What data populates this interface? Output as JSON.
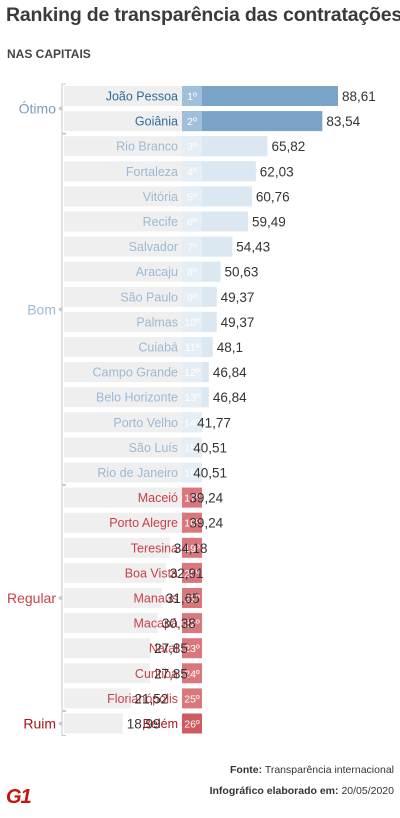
{
  "header": {
    "title": "Ranking de transparência das contratações",
    "subtitle": "NAS CAPITAIS"
  },
  "footer": {
    "source_label": "Fonte:",
    "source_value": "Transparência internacional",
    "credit_label": "Infográfico elaborado em:",
    "credit_value": "20/05/2020",
    "logo": "G1"
  },
  "chart_data": {
    "type": "bar",
    "orientation": "horizontal",
    "title": "Ranking de transparência das contratações",
    "subtitle": "NAS CAPITAIS",
    "categories": [
      "João Pessoa",
      "Goiânia",
      "Rio Branco",
      "Fortaleza",
      "Vitória",
      "Recife",
      "Salvador",
      "Aracaju",
      "São Paulo",
      "Palmas",
      "Cuiabá",
      "Campo Grande",
      "Belo Horizonte",
      "Porto Velho",
      "São Luís",
      "Rio de Janeiro",
      "Maceió",
      "Porto Alegre",
      "Teresina",
      "Boa Vista",
      "Manaus",
      "Macapá",
      "Natal",
      "Curitiba",
      "Florianópolis",
      "Belém"
    ],
    "ranks": [
      "1º",
      "2º",
      "3º",
      "4º",
      "5º",
      "6º",
      "7º",
      "8º",
      "9º",
      "10º",
      "11º",
      "12º",
      "13º",
      "14º",
      "15º",
      "16º",
      "17º",
      "18º",
      "19º",
      "20º",
      "21º",
      "22º",
      "23º",
      "24º",
      "25º",
      "26º"
    ],
    "values": [
      88.61,
      83.54,
      65.82,
      62.03,
      60.76,
      59.49,
      54.43,
      50.63,
      49.37,
      49.37,
      48.1,
      46.84,
      46.84,
      41.77,
      40.51,
      40.51,
      39.24,
      39.24,
      34.18,
      32.91,
      31.65,
      30.38,
      27.85,
      27.85,
      21.52,
      18.99
    ],
    "value_labels": [
      "88,61",
      "83,54",
      "65,82",
      "62,03",
      "60,76",
      "59,49",
      "54,43",
      "50,63",
      "49,37",
      "49,37",
      "48,1",
      "46,84",
      "46,84",
      "41,77",
      "40,51",
      "40,51",
      "39,24",
      "39,24",
      "34,18",
      "32,91",
      "31,65",
      "30,38",
      "27,85",
      "27,85",
      "21,52",
      "18,99"
    ],
    "groups": [
      {
        "name": "Ótimo",
        "start": 0,
        "end": 1,
        "bar_color": "#7aa3c8",
        "label_color": "#2f6b99",
        "name_color": "#7a9bb8",
        "rank_bg": "#9fbfdb"
      },
      {
        "name": "Bom",
        "start": 2,
        "end": 15,
        "bar_color": "#dbe7f1",
        "label_color": "#9bbad4",
        "name_color": "#9bbad4",
        "rank_bg": "#e6eef5"
      },
      {
        "name": "Regular",
        "start": 16,
        "end": 24,
        "bar_color": "#cc5c62",
        "label_color": "#c94048",
        "name_color": "#c94048",
        "rank_bg": "#d9777c"
      },
      {
        "name": "Ruim",
        "start": 25,
        "end": 25,
        "bar_color": "#c4171d",
        "label_color": "#b0121a",
        "name_color": "#b0121a",
        "rank_bg": "#d05b5f"
      }
    ],
    "value_label_color": "#333333"
  }
}
